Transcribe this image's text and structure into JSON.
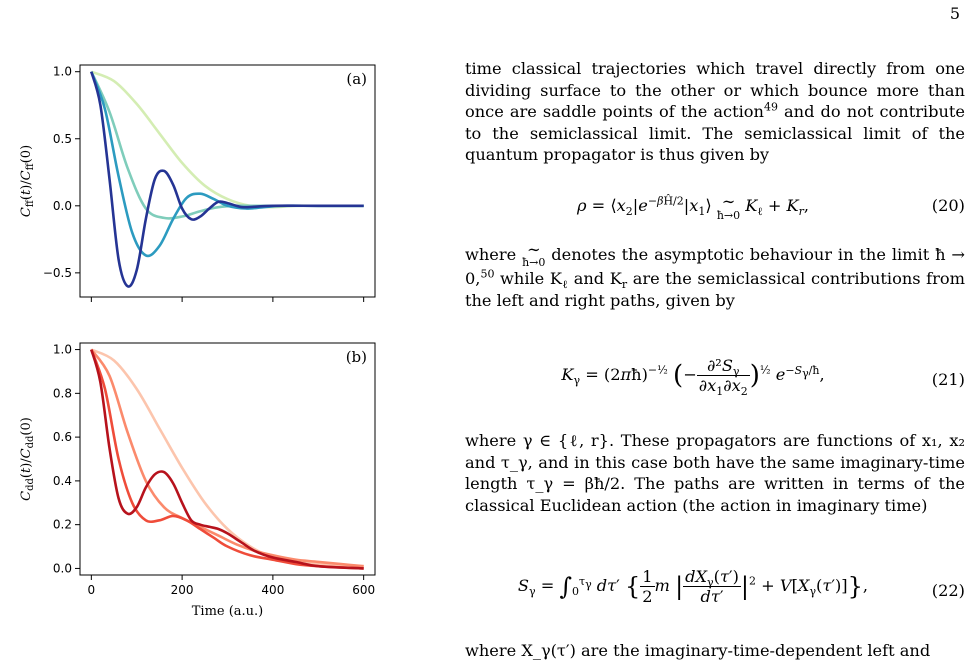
{
  "page_number": "5",
  "paragraphs": {
    "p1": "time classical trajectories which travel directly from one dividing surface to the other or which bounce more than once are saddle points of the action",
    "p1_ref": "49",
    "p1_b": " and do not contribute to the semiclassical limit. The semiclassical limit of the quantum propagator is thus given by",
    "p2_a": "where ",
    "p2_b": " denotes the asymptotic behaviour in the limit ħ → 0,",
    "p2_ref": "50",
    "p2_c": " while K",
    "p2_d": " and K",
    "p2_e": " are the semiclassical contributions from the left and right paths, given by",
    "p3": "where γ ∈ {ℓ, r}. These propagators are functions of x₁, x₂ and τ_γ, and in this case both have the same imaginary-time length τ_γ = βħ/2. The paths are written in terms of the classical Euclidean action (the action in imaginary time)",
    "p4": "where X_γ(τ′) are the imaginary-time-dependent left and"
  },
  "equations": {
    "eq20_num": "(20)",
    "eq21_num": "(21)",
    "eq22_num": "(22)"
  },
  "chart_data": [
    {
      "type": "line",
      "panel_label": "(a)",
      "ylabel": "C_ff(t)/C_ff(0)",
      "xlim": [
        -25,
        625
      ],
      "ylim": [
        -0.68,
        1.05
      ],
      "yticks": [
        -0.5,
        0.0,
        0.5,
        1.0
      ],
      "ytick_labels": [
        "−0.5",
        "0.0",
        "0.5",
        "1.0"
      ],
      "xticks": [
        0,
        200,
        400,
        600
      ],
      "grid": false,
      "legend": "none",
      "series": [
        {
          "color": "#d4edb3",
          "x": [
            0,
            50,
            100,
            150,
            200,
            250,
            300,
            350,
            400,
            450,
            500,
            550,
            600
          ],
          "y": [
            1.0,
            0.93,
            0.76,
            0.54,
            0.32,
            0.15,
            0.05,
            0.0,
            -0.01,
            0.0,
            0.0,
            0.0,
            0.0
          ]
        },
        {
          "color": "#7fcdbb",
          "x": [
            0,
            40,
            80,
            120,
            160,
            200,
            240,
            280,
            320,
            360,
            400,
            500,
            600
          ],
          "y": [
            1.0,
            0.7,
            0.28,
            -0.02,
            -0.09,
            -0.08,
            -0.04,
            -0.01,
            0.0,
            0.0,
            0.0,
            0.0,
            0.0
          ]
        },
        {
          "color": "#2c9bc0",
          "x": [
            0,
            30,
            60,
            90,
            120,
            150,
            180,
            210,
            240,
            270,
            300,
            340,
            380,
            420,
            500,
            600
          ],
          "y": [
            1.0,
            0.72,
            0.22,
            -0.2,
            -0.37,
            -0.3,
            -0.1,
            0.06,
            0.09,
            0.05,
            0.0,
            -0.02,
            -0.01,
            0.0,
            0.0,
            0.0
          ]
        },
        {
          "color": "#253494",
          "x": [
            0,
            20,
            40,
            60,
            80,
            100,
            120,
            140,
            160,
            180,
            200,
            220,
            240,
            260,
            280,
            300,
            320,
            340,
            400,
            500,
            600
          ],
          "y": [
            1.0,
            0.75,
            0.2,
            -0.4,
            -0.6,
            -0.48,
            -0.1,
            0.2,
            0.26,
            0.16,
            -0.02,
            -0.1,
            -0.08,
            -0.02,
            0.03,
            0.02,
            0.0,
            -0.01,
            0.0,
            0.0,
            0.0
          ]
        }
      ]
    },
    {
      "type": "line",
      "panel_label": "(b)",
      "ylabel": "C_dd(t)/C_dd(0)",
      "xlabel": "Time (a.u.)",
      "xlim": [
        -25,
        625
      ],
      "ylim": [
        -0.03,
        1.03
      ],
      "yticks": [
        0.0,
        0.2,
        0.4,
        0.6,
        0.8,
        1.0
      ],
      "ytick_labels": [
        "0.0",
        "0.2",
        "0.4",
        "0.6",
        "0.8",
        "1.0"
      ],
      "xticks": [
        0,
        200,
        400,
        600
      ],
      "xtick_labels": [
        "0",
        "200",
        "400",
        "600"
      ],
      "grid": false,
      "legend": "none",
      "series": [
        {
          "color": "#fcc5ad",
          "x": [
            0,
            50,
            100,
            150,
            200,
            250,
            300,
            350,
            400,
            450,
            500,
            550,
            600
          ],
          "y": [
            1.0,
            0.95,
            0.82,
            0.64,
            0.46,
            0.3,
            0.18,
            0.1,
            0.05,
            0.03,
            0.02,
            0.01,
            0.01
          ]
        },
        {
          "color": "#fb8a6c",
          "x": [
            0,
            40,
            80,
            120,
            160,
            200,
            240,
            280,
            320,
            360,
            400,
            450,
            500,
            550,
            600
          ],
          "y": [
            1.0,
            0.88,
            0.62,
            0.4,
            0.28,
            0.23,
            0.19,
            0.15,
            0.11,
            0.08,
            0.06,
            0.04,
            0.03,
            0.02,
            0.01
          ]
        },
        {
          "color": "#ef4c3a",
          "x": [
            0,
            30,
            60,
            90,
            120,
            150,
            180,
            210,
            240,
            270,
            300,
            350,
            400,
            450,
            500,
            600
          ],
          "y": [
            1.0,
            0.82,
            0.5,
            0.3,
            0.22,
            0.22,
            0.24,
            0.22,
            0.18,
            0.14,
            0.1,
            0.06,
            0.04,
            0.02,
            0.01,
            0.0
          ]
        },
        {
          "color": "#b7121c",
          "x": [
            0,
            20,
            40,
            60,
            80,
            100,
            120,
            140,
            160,
            180,
            200,
            220,
            240,
            260,
            280,
            300,
            330,
            360,
            400,
            450,
            500,
            600
          ],
          "y": [
            1.0,
            0.85,
            0.55,
            0.32,
            0.25,
            0.28,
            0.37,
            0.43,
            0.44,
            0.39,
            0.3,
            0.22,
            0.2,
            0.19,
            0.18,
            0.16,
            0.12,
            0.08,
            0.05,
            0.03,
            0.01,
            0.0
          ]
        }
      ]
    }
  ]
}
